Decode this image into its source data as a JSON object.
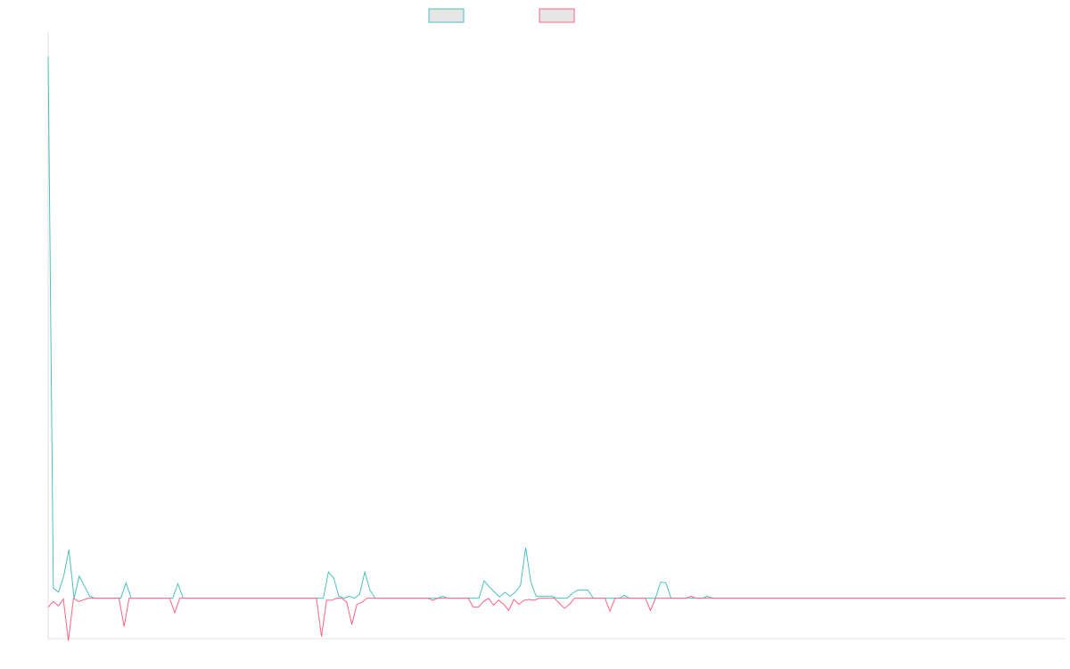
{
  "chart_data": {
    "type": "line",
    "title": "",
    "xlabel": "",
    "ylabel": "",
    "legend_placement": "top-center",
    "grid": false,
    "ylim": [
      -10,
      140
    ],
    "xlim": [
      0,
      190
    ],
    "series": [
      {
        "name": "",
        "color": "#4bc0c0",
        "legend_fill": "#e6e6e6",
        "values": [
          134,
          2.5,
          1.5,
          5.5,
          12,
          0,
          5.5,
          3,
          0.5,
          0,
          0,
          0,
          0,
          0,
          0,
          3.8,
          0,
          0,
          0,
          0,
          0,
          0,
          0,
          0,
          0,
          3.6,
          0,
          0,
          0,
          0,
          0,
          0,
          0,
          0,
          0,
          0,
          0,
          0,
          0,
          0,
          0,
          0,
          0,
          0,
          0,
          0,
          0,
          0,
          0,
          0,
          0,
          0,
          0,
          0,
          6.5,
          5,
          0.5,
          0,
          0.5,
          0,
          1,
          6.5,
          2,
          0,
          0,
          0,
          0,
          0,
          0,
          0,
          0,
          0,
          0,
          0,
          0,
          0,
          0.5,
          0,
          0,
          0,
          0,
          0,
          0,
          0,
          4.3,
          2.8,
          1.5,
          0.3,
          1.5,
          0.5,
          1.5,
          3.2,
          12.5,
          4,
          0.5,
          0.5,
          0.5,
          0.5,
          0,
          0,
          0,
          1.2,
          2,
          2,
          2,
          0,
          0,
          0,
          0,
          0,
          0,
          0.7,
          0,
          0,
          0,
          0,
          0,
          0,
          4,
          3.8,
          0,
          0,
          0,
          0,
          0,
          0,
          0,
          0.5,
          0,
          0,
          0,
          0,
          0,
          0,
          0,
          0,
          0,
          0,
          0,
          0,
          0,
          0,
          0,
          0,
          0,
          0,
          0,
          0,
          0,
          0,
          0,
          0,
          0,
          0,
          0,
          0,
          0,
          0,
          0,
          0,
          0,
          0,
          0,
          0,
          0,
          0,
          0,
          0,
          0,
          0,
          0,
          0,
          0,
          0,
          0,
          0,
          0,
          0,
          0,
          0,
          0,
          0,
          0,
          0,
          0,
          0,
          0,
          0,
          0,
          0,
          0,
          0,
          0,
          0,
          0,
          0,
          0
        ]
      },
      {
        "name": "",
        "color": "#ff6384",
        "legend_fill": "#e6e6e6",
        "values": [
          -2.2,
          -0.8,
          -1.9,
          -0.2,
          -10.5,
          0,
          -0.8,
          -0.4,
          0,
          0,
          0,
          0,
          0,
          0,
          0,
          -7,
          0,
          0,
          0,
          0,
          0,
          0,
          0,
          0,
          0,
          -3.6,
          0,
          0,
          0,
          0,
          0,
          0,
          0,
          0,
          0,
          0,
          0,
          0,
          0,
          0,
          0,
          0,
          0,
          0,
          0,
          0,
          0,
          0,
          0,
          0,
          0,
          0,
          0,
          0,
          -9.5,
          -0.5,
          -0.5,
          0,
          0,
          -1,
          -6.5,
          -1.5,
          -1,
          0,
          0,
          0,
          0,
          0,
          0,
          0,
          0,
          0,
          0,
          0,
          0,
          0,
          -0.5,
          0,
          0,
          0,
          0,
          0,
          0,
          0,
          -2.2,
          -2.2,
          -0.8,
          0,
          -1.7,
          -0.5,
          -1.5,
          -3,
          -0.3,
          -1.5,
          -0.5,
          -0.3,
          -0.5,
          0,
          0,
          0,
          0,
          -1.2,
          -2.5,
          -1.5,
          0,
          0,
          0,
          0,
          0,
          0,
          0,
          -3.2,
          0,
          0,
          0,
          0,
          0,
          0,
          0,
          -3,
          0,
          0,
          0,
          0,
          0,
          0,
          0,
          0.5,
          0,
          0,
          0,
          0,
          0,
          0,
          0,
          0,
          0,
          0,
          0,
          0,
          0,
          0,
          0,
          0,
          0,
          0,
          0,
          0,
          0,
          0,
          0,
          0,
          0,
          0,
          0,
          0,
          0,
          0,
          0,
          0,
          0,
          0,
          0,
          0,
          0,
          0,
          0,
          0,
          0,
          0,
          0,
          0,
          0,
          0,
          0,
          0,
          0,
          0,
          0,
          0,
          0,
          0,
          0,
          0,
          0,
          0,
          0,
          0,
          0,
          0,
          0,
          0,
          0,
          0,
          0,
          0,
          0,
          0,
          0,
          0,
          0,
          0
        ]
      }
    ]
  }
}
